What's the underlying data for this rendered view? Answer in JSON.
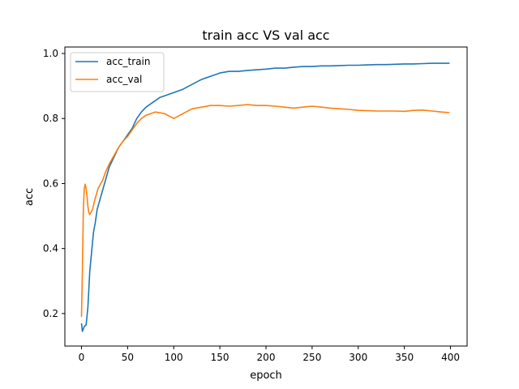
{
  "chart_data": {
    "type": "line",
    "title": "train acc VS val acc",
    "xlabel": "epoch",
    "ylabel": "acc",
    "xlim": [
      -18,
      418
    ],
    "ylim": [
      0.1,
      1.02
    ],
    "xticks": [
      0,
      50,
      100,
      150,
      200,
      250,
      300,
      350,
      400
    ],
    "yticks": [
      0.2,
      0.4,
      0.6,
      0.8,
      1.0
    ],
    "ytick_labels": [
      "0.2",
      "0.4",
      "0.6",
      "0.8",
      "1.0"
    ],
    "grid": false,
    "legend_position": "upper-left",
    "series": [
      {
        "name": "acc_train",
        "color": "#1f77b4",
        "x": [
          0,
          1,
          3,
          5,
          7,
          9,
          11,
          13,
          15,
          17,
          20,
          23,
          26,
          30,
          35,
          40,
          45,
          50,
          55,
          60,
          65,
          70,
          75,
          80,
          85,
          90,
          95,
          100,
          110,
          120,
          130,
          140,
          150,
          160,
          170,
          180,
          190,
          200,
          210,
          220,
          230,
          240,
          250,
          260,
          270,
          280,
          290,
          300,
          310,
          320,
          330,
          340,
          350,
          360,
          370,
          380,
          390,
          399
        ],
        "y": [
          0.17,
          0.145,
          0.16,
          0.165,
          0.22,
          0.33,
          0.39,
          0.45,
          0.48,
          0.52,
          0.55,
          0.58,
          0.61,
          0.65,
          0.68,
          0.71,
          0.73,
          0.75,
          0.77,
          0.8,
          0.82,
          0.835,
          0.845,
          0.855,
          0.865,
          0.87,
          0.875,
          0.88,
          0.89,
          0.905,
          0.92,
          0.93,
          0.94,
          0.945,
          0.945,
          0.948,
          0.95,
          0.952,
          0.955,
          0.955,
          0.958,
          0.96,
          0.96,
          0.962,
          0.962,
          0.963,
          0.964,
          0.964,
          0.965,
          0.966,
          0.966,
          0.967,
          0.968,
          0.968,
          0.969,
          0.97,
          0.97,
          0.97
        ]
      },
      {
        "name": "acc_val",
        "color": "#ff7f0e",
        "x": [
          0,
          1,
          2,
          3,
          4,
          5,
          6,
          7,
          8,
          9,
          10,
          12,
          14,
          16,
          18,
          20,
          23,
          26,
          30,
          35,
          40,
          45,
          50,
          55,
          60,
          65,
          70,
          75,
          80,
          90,
          100,
          110,
          120,
          130,
          140,
          150,
          160,
          170,
          180,
          190,
          200,
          210,
          220,
          230,
          240,
          250,
          260,
          270,
          280,
          290,
          300,
          310,
          320,
          330,
          340,
          350,
          360,
          370,
          380,
          390,
          399
        ],
        "y": [
          0.19,
          0.33,
          0.52,
          0.585,
          0.598,
          0.585,
          0.56,
          0.53,
          0.51,
          0.505,
          0.51,
          0.52,
          0.545,
          0.565,
          0.585,
          0.595,
          0.61,
          0.635,
          0.66,
          0.685,
          0.71,
          0.73,
          0.745,
          0.765,
          0.785,
          0.8,
          0.81,
          0.815,
          0.82,
          0.815,
          0.8,
          0.815,
          0.83,
          0.835,
          0.84,
          0.84,
          0.838,
          0.84,
          0.843,
          0.84,
          0.84,
          0.838,
          0.835,
          0.832,
          0.835,
          0.838,
          0.835,
          0.832,
          0.83,
          0.828,
          0.825,
          0.824,
          0.823,
          0.823,
          0.823,
          0.822,
          0.825,
          0.826,
          0.823,
          0.82,
          0.818
        ]
      }
    ]
  }
}
